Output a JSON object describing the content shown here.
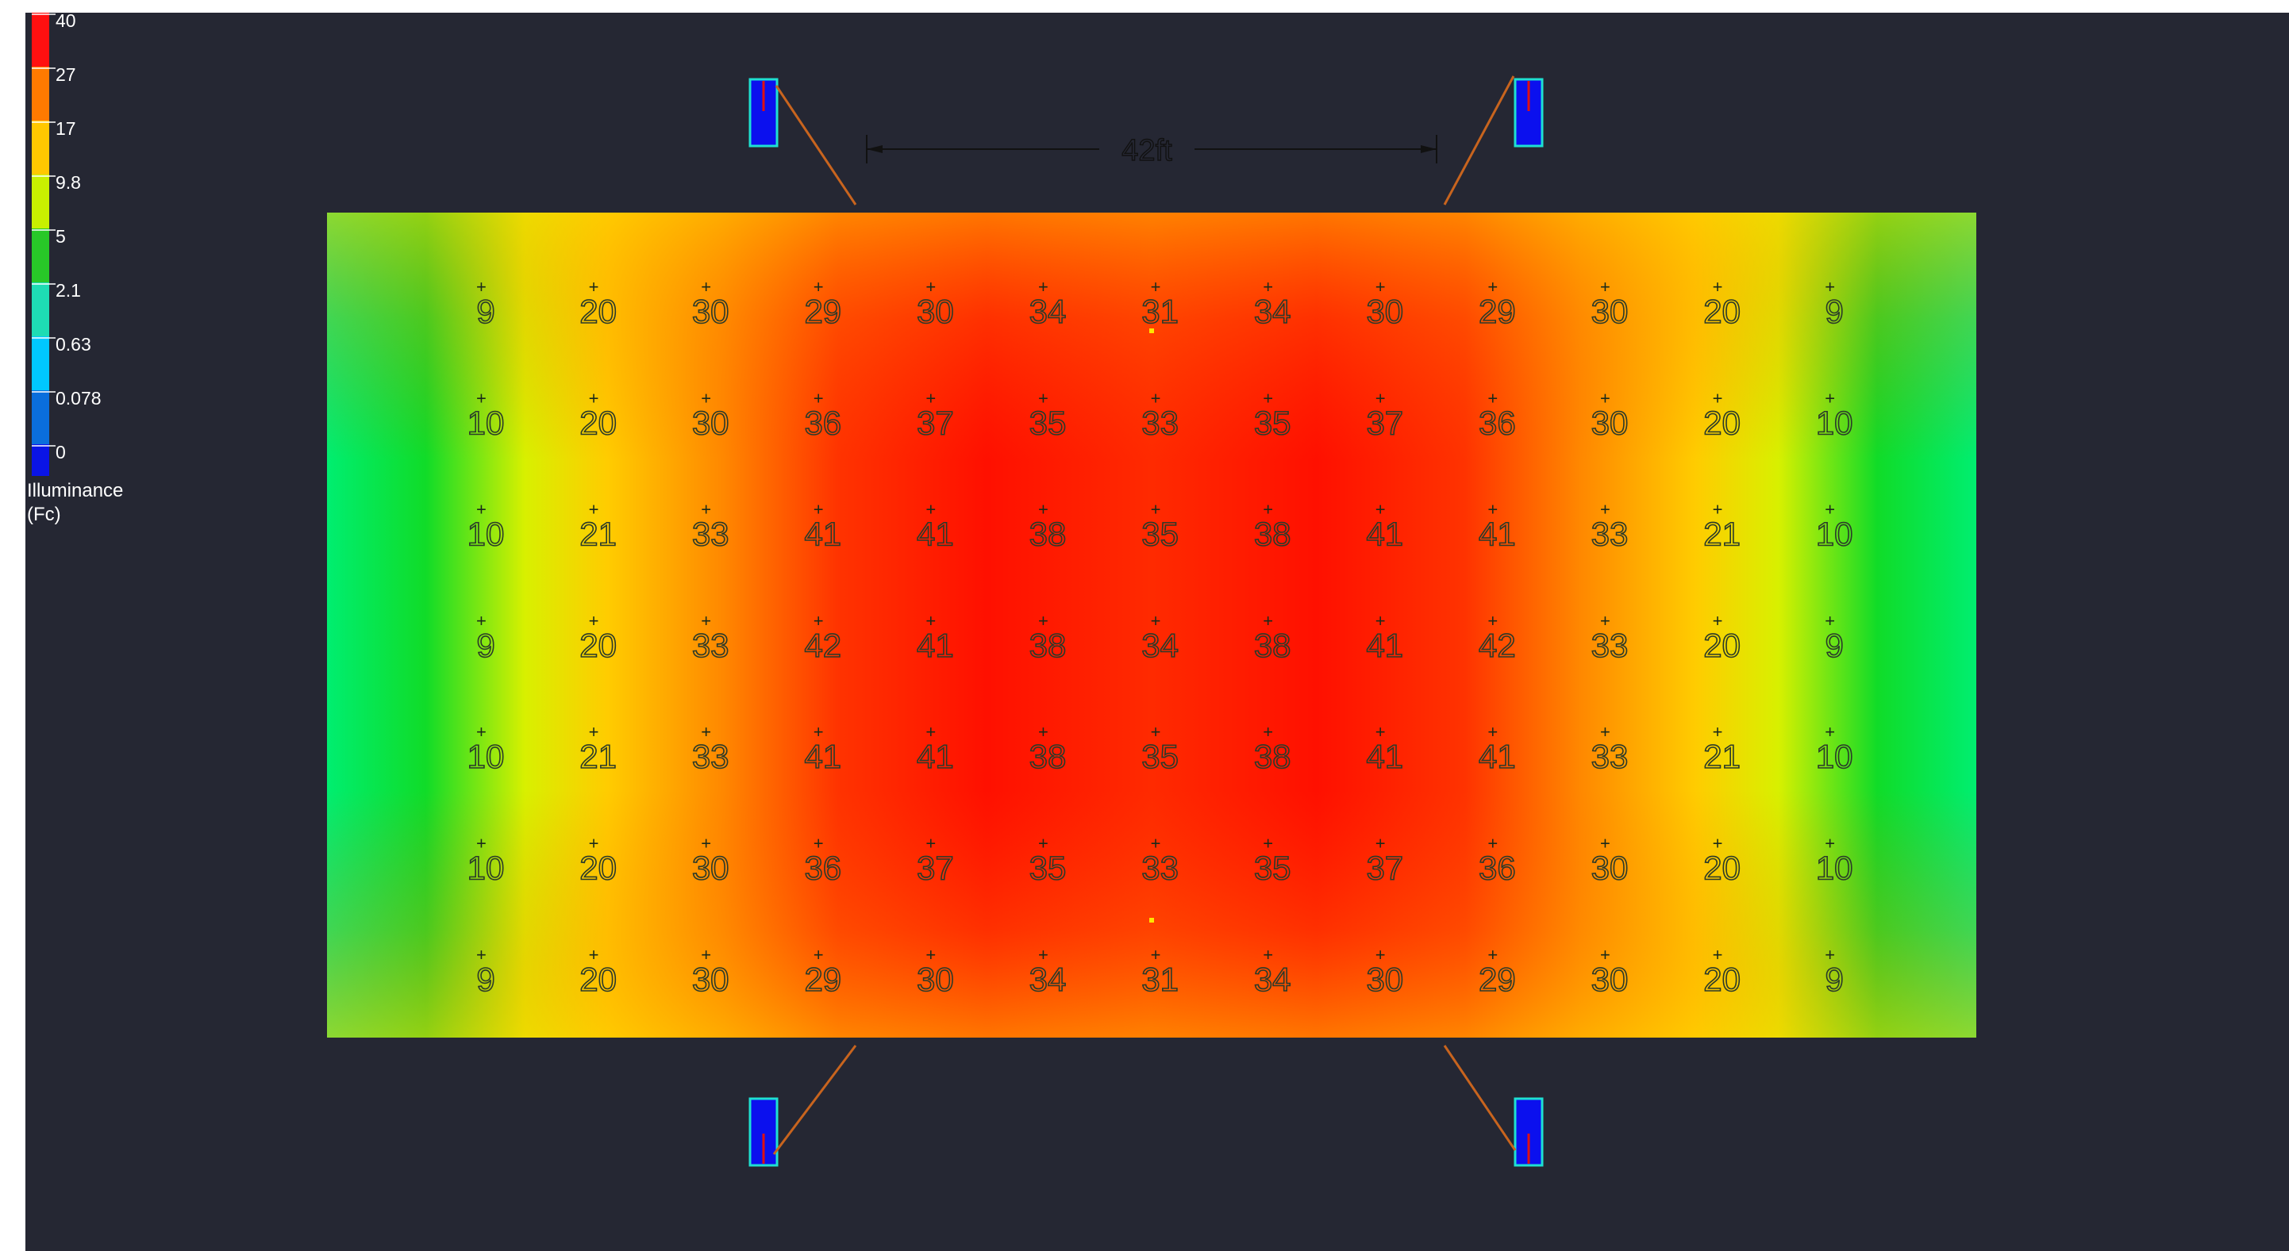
{
  "colors": {
    "background": "#252733",
    "outer": "#ffffff",
    "fixture_body": "#0b10ee",
    "fixture_edge": "#1ee0d2",
    "aim_line": "#c8641e"
  },
  "legend": {
    "scale_labels": [
      "40",
      "27",
      "17",
      "9.8",
      "5",
      "2.1",
      "0.63",
      "0.078",
      "0"
    ],
    "scale_colors": [
      "#ff1010",
      "#ff7a00",
      "#ffc800",
      "#c8f000",
      "#28c828",
      "#1edcb4",
      "#00c8ff",
      "#0a6edc",
      "#0a14e6"
    ],
    "title_line1": "Illuminance",
    "title_line2": "(Fc)"
  },
  "dimension": {
    "label": "42ft"
  },
  "grid": {
    "rows": [
      [
        "9",
        "20",
        "30",
        "29",
        "30",
        "34",
        "31",
        "34",
        "30",
        "29",
        "30",
        "20",
        "9"
      ],
      [
        "10",
        "20",
        "30",
        "36",
        "37",
        "35",
        "33",
        "35",
        "37",
        "36",
        "30",
        "20",
        "10"
      ],
      [
        "10",
        "21",
        "33",
        "41",
        "41",
        "38",
        "35",
        "38",
        "41",
        "41",
        "33",
        "21",
        "10"
      ],
      [
        "9",
        "20",
        "33",
        "42",
        "41",
        "38",
        "34",
        "38",
        "41",
        "42",
        "33",
        "20",
        "9"
      ],
      [
        "10",
        "21",
        "33",
        "41",
        "41",
        "38",
        "35",
        "38",
        "41",
        "41",
        "33",
        "21",
        "10"
      ],
      [
        "10",
        "20",
        "30",
        "36",
        "37",
        "35",
        "33",
        "35",
        "37",
        "36",
        "30",
        "20",
        "10"
      ],
      [
        "9",
        "20",
        "30",
        "29",
        "30",
        "34",
        "31",
        "34",
        "30",
        "29",
        "30",
        "20",
        "9"
      ]
    ]
  },
  "fixtures": [
    {
      "name": "fixture-top-left"
    },
    {
      "name": "fixture-top-right"
    },
    {
      "name": "fixture-bottom-left"
    },
    {
      "name": "fixture-bottom-right"
    }
  ]
}
